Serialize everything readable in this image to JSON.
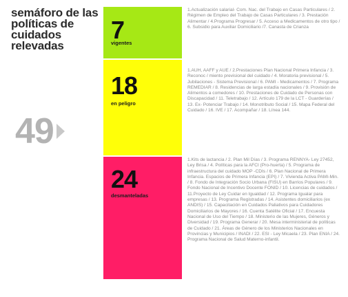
{
  "title": "semáforo de las políticas de cuidados relevadas",
  "total": "49",
  "blocks": [
    {
      "count": "7",
      "label": "vigentes",
      "color": "#a6e815",
      "description": "1.Actualización salarial- Com. Nac. del Trabajo en Casas Particulares / 2. Régimen de Empleo del Trabajo de Casas Particulares / 3. Prestación Alimentar / 4.Programa Progresar / 5. Acceso a Medicamentos de otro tipo / 6. Subsidio para Auxiliar Domiciliario /7. Canasta de Crianza"
    },
    {
      "count": "18",
      "label": "en peligro",
      "color": "#ffff08",
      "description": "1.AUH, AAFF y AUE / 2.Prestaciones Plan Nacional Primera Infancia / 3. Reconoc / miento previsional del cuidado / 4. Moratoria previsional / 5. Jubilaciones - Sistema Previsional / 6. PAMI - Medicamentos / 7. Programa REMEDIAR / 8. Residencias de larga estadía nacionales / 9. Provisión de Alimentos a comedores / 10. Prestaciones de Cuidado de Personas con Discapacidad / 11. Teletrabajo / 12. Artículo 179 de la LCT - Guarderías / 13. Ex- Potenciar Trabajo / 14. Monotributo Social / 15. Mapa Federal del Cuidado / 16. IVE / 17. Acompañar / 18. Línea 144."
    },
    {
      "count": "24",
      "label": "desmanteladas",
      "color": "#ff1d66",
      "description": "1.Kits de lactancia / 2. Plan Mil Días / 3. Programa RENNYA- Ley 27452, Ley Brisa / 4. Políticas para la AFCI (Pro-huerta) / 5. Programa de infraestructura del cuidado MOP -CDIs / 6. Plan Nacional de Primera Infancia. Espacios de Primera Infancia (EPI) / 7. Vivienda Activa PAMI-Min. / 8. Fondo de Integración Socio Urbana (FISU) en Barrios Populares / 9. Fondo Nacional de Incentivo Docente FONID / 10. Licencias de cuidados / 11.Proyecto de Ley Cuidar en Igualdad / 12. Programa Igualar para empresas / 13. Programa Registradas / 14. Asistentes domiciliarios (ex ANDIS) / 15. Capacitación en Cuidados Paliativos para Cuidadores Domiciliarios de Mayores / 16. Cuenta Satélite Oficial / 17. Encuesta Nacional de Uso del Tiempo / 18. Ministerio de las Mujeres, Géneros y Diversidad / 19. Programa Generar / 20. Mesa interministerial de políticas de Cuidado / 21. Áreas de Género de los Ministerios Nacionales en Provincias y Municipios / INADI / 22. ESI - Ley Micaela / 23. Plan ENIA / 24. Programa Nacional de Salud Materno-infantil."
    }
  ]
}
